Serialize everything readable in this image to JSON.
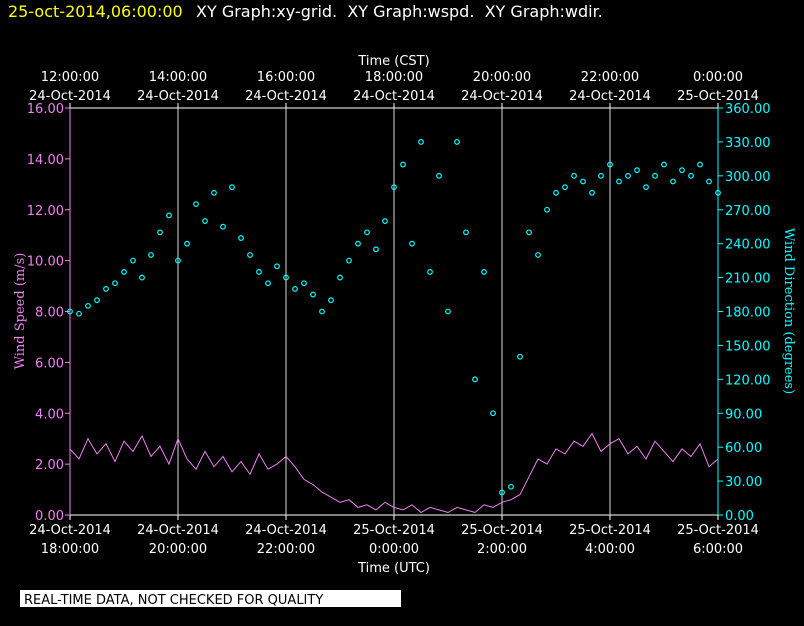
{
  "header": {
    "timestamp": "25-oct-2014,06:00:00",
    "graphs": "XY Graph:xy-grid.  XY Graph:wspd.  XY Graph:wdir."
  },
  "footer": "REAL-TIME DATA, NOT CHECKED FOR QUALITY",
  "chart_data": {
    "type": "line-scatter",
    "xlabel": "Time (UTC)",
    "x2label": "Time (CST)",
    "ylabel": "Wind Speed (m/s)",
    "y2label": "Wind Direction (degrees)",
    "xlim": [
      "2014-10-24T18:00",
      "2014-10-25T06:00"
    ],
    "xticks": [
      {
        "value": "2014-10-24T18:00",
        "label": [
          "24-Oct-2014",
          "18:00:00"
        ]
      },
      {
        "value": "2014-10-24T20:00",
        "label": [
          "24-Oct-2014",
          "20:00:00"
        ]
      },
      {
        "value": "2014-10-24T22:00",
        "label": [
          "24-Oct-2014",
          "22:00:00"
        ]
      },
      {
        "value": "2014-10-25T00:00",
        "label": [
          "25-Oct-2014",
          "0:00:00"
        ]
      },
      {
        "value": "2014-10-25T02:00",
        "label": [
          "25-Oct-2014",
          "2:00:00"
        ]
      },
      {
        "value": "2014-10-25T04:00",
        "label": [
          "25-Oct-2014",
          "4:00:00"
        ]
      },
      {
        "value": "2014-10-25T06:00",
        "label": [
          "25-Oct-2014",
          "6:00:00"
        ]
      }
    ],
    "x2ticks": [
      {
        "value": "2014-10-24T18:00",
        "label": [
          "12:00:00",
          "24-Oct-2014"
        ]
      },
      {
        "value": "2014-10-24T20:00",
        "label": [
          "14:00:00",
          "24-Oct-2014"
        ]
      },
      {
        "value": "2014-10-24T22:00",
        "label": [
          "16:00:00",
          "24-Oct-2014"
        ]
      },
      {
        "value": "2014-10-25T00:00",
        "label": [
          "18:00:00",
          "24-Oct-2014"
        ]
      },
      {
        "value": "2014-10-25T02:00",
        "label": [
          "20:00:00",
          "24-Oct-2014"
        ]
      },
      {
        "value": "2014-10-25T04:00",
        "label": [
          "22:00:00",
          "24-Oct-2014"
        ]
      },
      {
        "value": "2014-10-25T06:00",
        "label": [
          "0:00:00",
          "25-Oct-2014"
        ]
      }
    ],
    "ylim": [
      0,
      16
    ],
    "yticks": [
      {
        "value": 0,
        "label": "0.00"
      },
      {
        "value": 2,
        "label": "2.00"
      },
      {
        "value": 4,
        "label": "4.00"
      },
      {
        "value": 6,
        "label": "6.00"
      },
      {
        "value": 8,
        "label": "8.00"
      },
      {
        "value": 10,
        "label": "10.00"
      },
      {
        "value": 12,
        "label": "12.00"
      },
      {
        "value": 14,
        "label": "14.00"
      },
      {
        "value": 16,
        "label": "16.00"
      }
    ],
    "y2lim": [
      0,
      360
    ],
    "y2ticks": [
      {
        "value": 0,
        "label": "0.00"
      },
      {
        "value": 30,
        "label": "30.00"
      },
      {
        "value": 60,
        "label": "60.00"
      },
      {
        "value": 90,
        "label": "90.00"
      },
      {
        "value": 120,
        "label": "120.00"
      },
      {
        "value": 150,
        "label": "150.00"
      },
      {
        "value": 180,
        "label": "180.00"
      },
      {
        "value": 210,
        "label": "210.00"
      },
      {
        "value": 240,
        "label": "240.00"
      },
      {
        "value": 270,
        "label": "270.00"
      },
      {
        "value": 300,
        "label": "300.00"
      },
      {
        "value": 330,
        "label": "330.00"
      },
      {
        "value": 360,
        "label": "360.00"
      }
    ],
    "grid": "x",
    "x": [
      "2014-10-24T18:00",
      "2014-10-24T18:10",
      "2014-10-24T18:20",
      "2014-10-24T18:30",
      "2014-10-24T18:40",
      "2014-10-24T18:50",
      "2014-10-24T19:00",
      "2014-10-24T19:10",
      "2014-10-24T19:20",
      "2014-10-24T19:30",
      "2014-10-24T19:40",
      "2014-10-24T19:50",
      "2014-10-24T20:00",
      "2014-10-24T20:10",
      "2014-10-24T20:20",
      "2014-10-24T20:30",
      "2014-10-24T20:40",
      "2014-10-24T20:50",
      "2014-10-24T21:00",
      "2014-10-24T21:10",
      "2014-10-24T21:20",
      "2014-10-24T21:30",
      "2014-10-24T21:40",
      "2014-10-24T21:50",
      "2014-10-24T22:00",
      "2014-10-24T22:10",
      "2014-10-24T22:20",
      "2014-10-24T22:30",
      "2014-10-24T22:40",
      "2014-10-24T22:50",
      "2014-10-24T23:00",
      "2014-10-24T23:10",
      "2014-10-24T23:20",
      "2014-10-24T23:30",
      "2014-10-24T23:40",
      "2014-10-24T23:50",
      "2014-10-25T00:00",
      "2014-10-25T00:10",
      "2014-10-25T00:20",
      "2014-10-25T00:30",
      "2014-10-25T00:40",
      "2014-10-25T00:50",
      "2014-10-25T01:00",
      "2014-10-25T01:10",
      "2014-10-25T01:20",
      "2014-10-25T01:30",
      "2014-10-25T01:40",
      "2014-10-25T01:50",
      "2014-10-25T02:00",
      "2014-10-25T02:10",
      "2014-10-25T02:20",
      "2014-10-25T02:30",
      "2014-10-25T02:40",
      "2014-10-25T02:50",
      "2014-10-25T03:00",
      "2014-10-25T03:10",
      "2014-10-25T03:20",
      "2014-10-25T03:30",
      "2014-10-25T03:40",
      "2014-10-25T03:50",
      "2014-10-25T04:00",
      "2014-10-25T04:10",
      "2014-10-25T04:20",
      "2014-10-25T04:30",
      "2014-10-25T04:40",
      "2014-10-25T04:50",
      "2014-10-25T05:00",
      "2014-10-25T05:10",
      "2014-10-25T05:20",
      "2014-10-25T05:30",
      "2014-10-25T05:40",
      "2014-10-25T05:50",
      "2014-10-25T06:00"
    ],
    "series": [
      {
        "type": "line",
        "color": "#ee82ee",
        "values": [
          2.6,
          2.2,
          3.0,
          2.4,
          2.8,
          2.1,
          2.9,
          2.5,
          3.1,
          2.3,
          2.7,
          2.0,
          3.0,
          2.2,
          1.8,
          2.5,
          1.9,
          2.3,
          1.7,
          2.1,
          1.6,
          2.4,
          1.8,
          2.0,
          2.3,
          1.9,
          1.4,
          1.2,
          0.9,
          0.7,
          0.5,
          0.6,
          0.3,
          0.4,
          0.2,
          0.5,
          0.3,
          0.2,
          0.4,
          0.1,
          0.3,
          0.2,
          0.1,
          0.3,
          0.2,
          0.1,
          0.4,
          0.3,
          0.5,
          0.6,
          0.8,
          1.5,
          2.2,
          2.0,
          2.6,
          2.4,
          2.9,
          2.7,
          3.2,
          2.5,
          2.8,
          3.0,
          2.4,
          2.7,
          2.2,
          2.9,
          2.5,
          2.1,
          2.6,
          2.3,
          2.8,
          1.9,
          2.2
        ]
      },
      {
        "type": "scatter",
        "color": "#00ffff",
        "axis": "y2",
        "values": [
          180,
          178,
          185,
          190,
          200,
          205,
          215,
          225,
          210,
          230,
          250,
          265,
          225,
          240,
          275,
          260,
          285,
          255,
          290,
          245,
          230,
          215,
          205,
          220,
          210,
          200,
          205,
          195,
          180,
          190,
          210,
          225,
          240,
          250,
          235,
          260,
          290,
          310,
          240,
          330,
          215,
          300,
          180,
          330,
          250,
          120,
          215,
          90,
          20,
          25,
          140,
          250,
          230,
          270,
          285,
          290,
          300,
          295,
          285,
          300,
          310,
          295,
          300,
          305,
          290,
          300,
          310,
          295,
          305,
          300,
          310,
          295,
          285
        ]
      }
    ]
  }
}
